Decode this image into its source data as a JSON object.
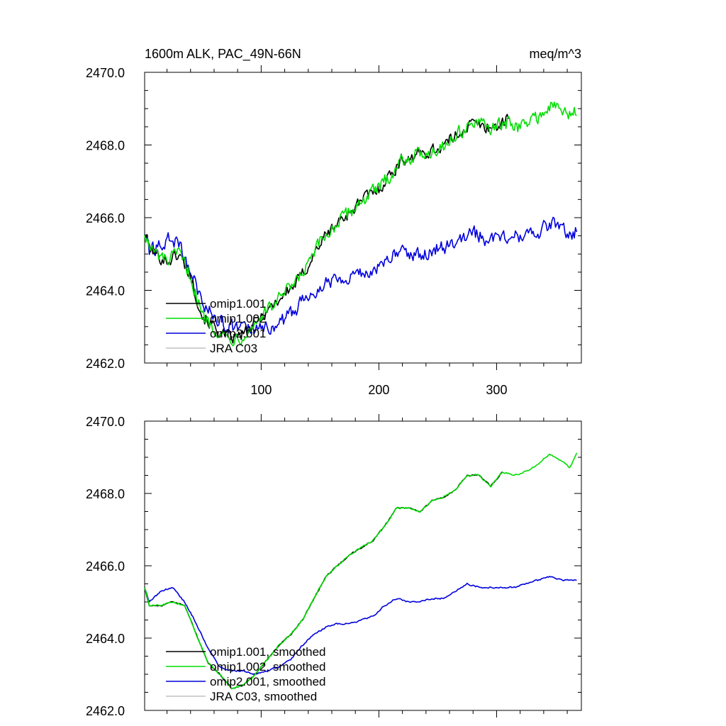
{
  "figure": {
    "title_left": "1600m ALK, PAC_49N-66N",
    "title_right": "meq/m^3"
  },
  "chart_data": [
    {
      "type": "line",
      "name": "raw",
      "xlim": [
        1,
        372
      ],
      "ylim": [
        2462.0,
        2470.0
      ],
      "xticks": [
        100,
        200,
        300
      ],
      "xtick_labels_visible": true,
      "yticks": [
        2462.0,
        2464.0,
        2466.0,
        2468.0,
        2470.0
      ],
      "ytick_labels": [
        "2462.0",
        "2464.0",
        "2466.0",
        "2468.0",
        "2470.0"
      ],
      "legend": {
        "position": "bottom-left"
      },
      "series": [
        {
          "name": "omip1.001",
          "color": "#000000",
          "anchors": [
            [
              1,
              2465.6
            ],
            [
              5,
              2465.2
            ],
            [
              10,
              2465.0
            ],
            [
              20,
              2464.8
            ],
            [
              30,
              2465.0
            ],
            [
              40,
              2464.4
            ],
            [
              50,
              2463.3
            ],
            [
              60,
              2463.0
            ],
            [
              70,
              2462.7
            ],
            [
              80,
              2462.7
            ],
            [
              90,
              2462.9
            ],
            [
              100,
              2463.3
            ],
            [
              110,
              2463.6
            ],
            [
              120,
              2463.9
            ],
            [
              130,
              2464.2
            ],
            [
              140,
              2464.7
            ],
            [
              150,
              2465.3
            ],
            [
              160,
              2465.7
            ],
            [
              170,
              2466.0
            ],
            [
              180,
              2466.3
            ],
            [
              190,
              2466.6
            ],
            [
              200,
              2466.8
            ],
            [
              210,
              2467.2
            ],
            [
              220,
              2467.6
            ],
            [
              230,
              2467.7
            ],
            [
              240,
              2467.8
            ],
            [
              250,
              2467.9
            ],
            [
              260,
              2468.1
            ],
            [
              270,
              2468.4
            ],
            [
              280,
              2468.6
            ],
            [
              290,
              2468.5
            ],
            [
              300,
              2468.5
            ],
            [
              310,
              2468.7
            ]
          ]
        },
        {
          "name": "omip1.002",
          "color": "#00dd00",
          "anchors": [
            [
              1,
              2465.6
            ],
            [
              5,
              2465.2
            ],
            [
              10,
              2465.0
            ],
            [
              20,
              2464.8
            ],
            [
              30,
              2465.0
            ],
            [
              40,
              2464.4
            ],
            [
              50,
              2463.3
            ],
            [
              60,
              2463.0
            ],
            [
              70,
              2462.7
            ],
            [
              80,
              2462.7
            ],
            [
              90,
              2462.9
            ],
            [
              100,
              2463.3
            ],
            [
              110,
              2463.6
            ],
            [
              120,
              2463.9
            ],
            [
              130,
              2464.2
            ],
            [
              140,
              2464.7
            ],
            [
              150,
              2465.3
            ],
            [
              160,
              2465.7
            ],
            [
              170,
              2466.0
            ],
            [
              180,
              2466.3
            ],
            [
              190,
              2466.6
            ],
            [
              200,
              2466.8
            ],
            [
              210,
              2467.2
            ],
            [
              220,
              2467.6
            ],
            [
              230,
              2467.7
            ],
            [
              240,
              2467.8
            ],
            [
              250,
              2467.9
            ],
            [
              260,
              2468.1
            ],
            [
              270,
              2468.4
            ],
            [
              280,
              2468.6
            ],
            [
              290,
              2468.5
            ],
            [
              300,
              2468.5
            ],
            [
              310,
              2468.6
            ],
            [
              320,
              2468.5
            ],
            [
              330,
              2468.7
            ],
            [
              340,
              2468.9
            ],
            [
              350,
              2469.1
            ],
            [
              360,
              2468.8
            ],
            [
              368,
              2469.0
            ]
          ]
        },
        {
          "name": "omip2.001",
          "color": "#0000dd",
          "anchors": [
            [
              1,
              2465.6
            ],
            [
              5,
              2465.1
            ],
            [
              10,
              2465.1
            ],
            [
              20,
              2465.4
            ],
            [
              30,
              2465.3
            ],
            [
              40,
              2464.5
            ],
            [
              50,
              2463.7
            ],
            [
              60,
              2463.3
            ],
            [
              70,
              2463.0
            ],
            [
              80,
              2463.0
            ],
            [
              90,
              2462.9
            ],
            [
              100,
              2462.9
            ],
            [
              110,
              2463.0
            ],
            [
              120,
              2463.2
            ],
            [
              130,
              2463.5
            ],
            [
              140,
              2463.9
            ],
            [
              150,
              2464.1
            ],
            [
              160,
              2464.3
            ],
            [
              170,
              2464.4
            ],
            [
              180,
              2464.4
            ],
            [
              190,
              2464.5
            ],
            [
              200,
              2464.6
            ],
            [
              210,
              2464.9
            ],
            [
              220,
              2465.1
            ],
            [
              230,
              2465.0
            ],
            [
              240,
              2465.0
            ],
            [
              250,
              2465.2
            ],
            [
              260,
              2465.2
            ],
            [
              270,
              2465.4
            ],
            [
              280,
              2465.6
            ],
            [
              290,
              2465.4
            ],
            [
              300,
              2465.5
            ],
            [
              310,
              2465.5
            ],
            [
              320,
              2465.5
            ],
            [
              330,
              2465.5
            ],
            [
              340,
              2465.7
            ],
            [
              350,
              2465.8
            ],
            [
              360,
              2465.6
            ],
            [
              368,
              2465.6
            ]
          ]
        },
        {
          "name": "JRA C03",
          "color": "#c0c0c0",
          "anchors": []
        }
      ]
    },
    {
      "type": "line",
      "name": "smoothed",
      "xlim": [
        1,
        372
      ],
      "ylim": [
        2462.0,
        2470.0
      ],
      "xticks": [
        100,
        200,
        300
      ],
      "xtick_labels_visible": false,
      "yticks": [
        2462.0,
        2464.0,
        2466.0,
        2468.0,
        2470.0
      ],
      "ytick_labels": [
        "2462.0",
        "2464.0",
        "2466.0",
        "2468.0",
        "2470.0"
      ],
      "legend": {
        "position": "bottom-left"
      },
      "series": [
        {
          "name": "omip1.001, smoothed",
          "color": "#000000",
          "anchors": [
            [
              1,
              2465.4
            ],
            [
              5,
              2464.9
            ],
            [
              15,
              2464.9
            ],
            [
              25,
              2465.0
            ],
            [
              35,
              2464.9
            ],
            [
              45,
              2464.1
            ],
            [
              55,
              2463.3
            ],
            [
              65,
              2463.0
            ],
            [
              75,
              2462.6
            ],
            [
              85,
              2462.7
            ],
            [
              95,
              2463.0
            ],
            [
              105,
              2463.4
            ],
            [
              115,
              2463.8
            ],
            [
              125,
              2464.1
            ],
            [
              135,
              2464.5
            ],
            [
              145,
              2465.1
            ],
            [
              155,
              2465.7
            ],
            [
              165,
              2466.0
            ],
            [
              175,
              2466.3
            ],
            [
              185,
              2466.5
            ],
            [
              195,
              2466.7
            ],
            [
              205,
              2467.1
            ],
            [
              215,
              2467.6
            ],
            [
              225,
              2467.6
            ],
            [
              235,
              2467.5
            ],
            [
              245,
              2467.8
            ],
            [
              255,
              2467.9
            ],
            [
              265,
              2468.1
            ],
            [
              275,
              2468.5
            ],
            [
              285,
              2468.5
            ],
            [
              295,
              2468.2
            ],
            [
              305,
              2468.6
            ]
          ]
        },
        {
          "name": "omip1.002, smoothed",
          "color": "#00dd00",
          "anchors": [
            [
              1,
              2465.4
            ],
            [
              5,
              2464.9
            ],
            [
              15,
              2464.9
            ],
            [
              25,
              2465.0
            ],
            [
              35,
              2464.9
            ],
            [
              45,
              2464.1
            ],
            [
              55,
              2463.3
            ],
            [
              65,
              2463.0
            ],
            [
              75,
              2462.6
            ],
            [
              85,
              2462.7
            ],
            [
              95,
              2463.0
            ],
            [
              105,
              2463.4
            ],
            [
              115,
              2463.8
            ],
            [
              125,
              2464.1
            ],
            [
              135,
              2464.5
            ],
            [
              145,
              2465.1
            ],
            [
              155,
              2465.7
            ],
            [
              165,
              2466.0
            ],
            [
              175,
              2466.3
            ],
            [
              185,
              2466.5
            ],
            [
              195,
              2466.7
            ],
            [
              205,
              2467.1
            ],
            [
              215,
              2467.6
            ],
            [
              225,
              2467.6
            ],
            [
              235,
              2467.5
            ],
            [
              245,
              2467.8
            ],
            [
              255,
              2467.9
            ],
            [
              265,
              2468.1
            ],
            [
              275,
              2468.5
            ],
            [
              285,
              2468.5
            ],
            [
              295,
              2468.2
            ],
            [
              305,
              2468.6
            ],
            [
              315,
              2468.5
            ],
            [
              325,
              2468.6
            ],
            [
              335,
              2468.8
            ],
            [
              345,
              2469.1
            ],
            [
              355,
              2468.9
            ],
            [
              362,
              2468.7
            ],
            [
              368,
              2469.1
            ]
          ]
        },
        {
          "name": "omip2.001, smoothed",
          "color": "#0000dd",
          "anchors": [
            [
              1,
              2465.4
            ],
            [
              5,
              2465.0
            ],
            [
              15,
              2465.3
            ],
            [
              25,
              2465.4
            ],
            [
              35,
              2465.0
            ],
            [
              45,
              2464.4
            ],
            [
              55,
              2463.7
            ],
            [
              65,
              2463.2
            ],
            [
              75,
              2463.1
            ],
            [
              85,
              2463.1
            ],
            [
              95,
              2463.0
            ],
            [
              105,
              2463.1
            ],
            [
              115,
              2463.2
            ],
            [
              125,
              2463.4
            ],
            [
              135,
              2463.8
            ],
            [
              145,
              2464.1
            ],
            [
              155,
              2464.3
            ],
            [
              165,
              2464.4
            ],
            [
              175,
              2464.4
            ],
            [
              185,
              2464.5
            ],
            [
              195,
              2464.6
            ],
            [
              205,
              2464.9
            ],
            [
              215,
              2465.1
            ],
            [
              225,
              2465.0
            ],
            [
              235,
              2465.0
            ],
            [
              245,
              2465.1
            ],
            [
              255,
              2465.1
            ],
            [
              265,
              2465.3
            ],
            [
              275,
              2465.5
            ],
            [
              285,
              2465.4
            ],
            [
              295,
              2465.4
            ],
            [
              305,
              2465.4
            ],
            [
              315,
              2465.4
            ],
            [
              325,
              2465.5
            ],
            [
              335,
              2465.6
            ],
            [
              345,
              2465.7
            ],
            [
              355,
              2465.6
            ],
            [
              368,
              2465.6
            ]
          ]
        },
        {
          "name": "JRA C03, smoothed",
          "color": "#c0c0c0",
          "anchors": []
        }
      ]
    }
  ]
}
